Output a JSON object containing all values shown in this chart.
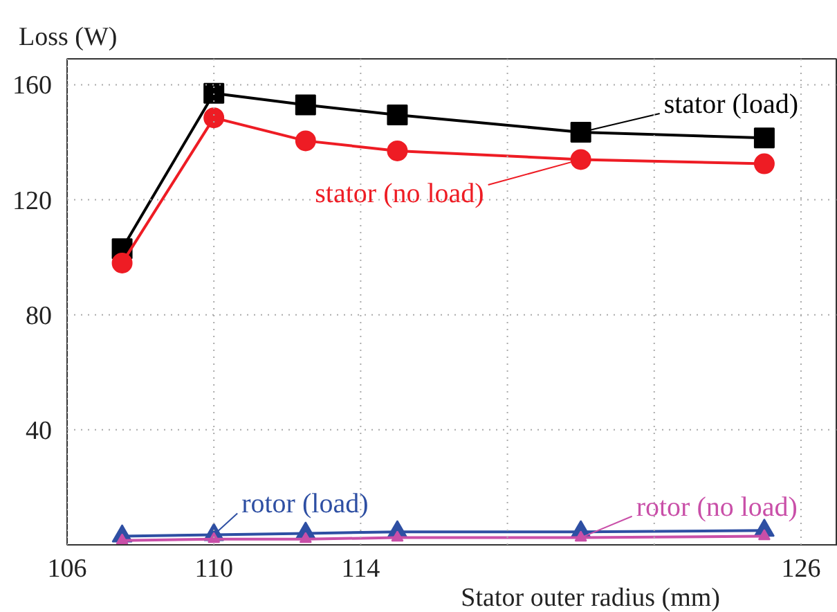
{
  "chart_data": {
    "type": "line",
    "xlabel": "Stator outer radius (mm)",
    "ylabel": "Loss (W)",
    "x": [
      107.5,
      110,
      112.5,
      115,
      120,
      125
    ],
    "series": [
      {
        "name": "stator (load)",
        "color": "#000000",
        "marker": "square",
        "values": [
          103,
          157,
          153,
          149.5,
          143.5,
          141.5
        ]
      },
      {
        "name": "stator (no load)",
        "color": "#ee1c24",
        "marker": "circle",
        "values": [
          98,
          148.5,
          140.5,
          137,
          134,
          132.5
        ]
      },
      {
        "name": "rotor (load)",
        "color": "#2e4fa3",
        "marker": "triangle",
        "values": [
          3,
          3.5,
          4,
          4.5,
          4.5,
          5
        ]
      },
      {
        "name": "rotor (no load)",
        "color": "#c94fa8",
        "marker": "triangle",
        "values": [
          1.5,
          2,
          2,
          2.5,
          2.5,
          3
        ]
      }
    ],
    "xlim": [
      106,
      127
    ],
    "ylim": [
      0,
      169
    ],
    "xticks": [
      106,
      110,
      114,
      {
        "value": 118,
        "label": null
      },
      {
        "value": 122,
        "label": null
      },
      126
    ],
    "yticks": [
      40,
      80,
      120,
      160
    ],
    "grid": true,
    "line_style": "solid"
  }
}
